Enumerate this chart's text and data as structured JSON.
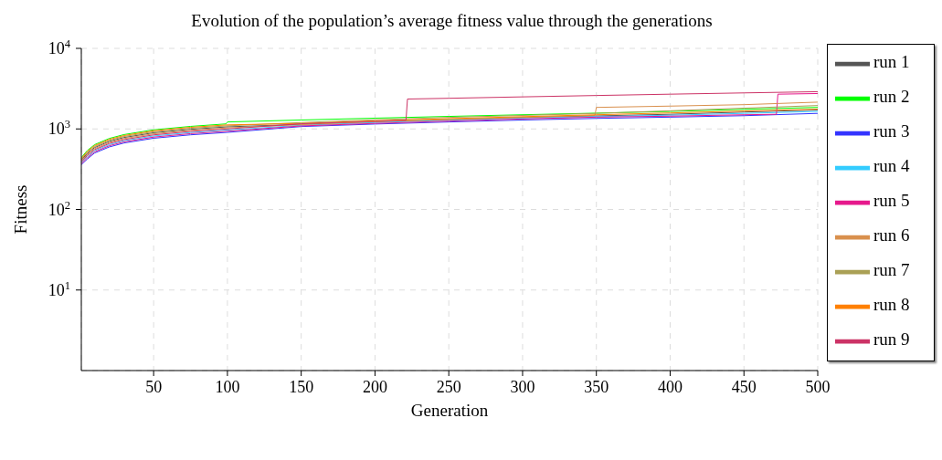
{
  "chart_data": {
    "type": "line",
    "title": "Evolution of the population’s average fitness value through the generations",
    "xlabel": "Generation",
    "ylabel": "Fitness",
    "xlim": [
      1,
      500
    ],
    "xticks": [
      50,
      100,
      150,
      200,
      250,
      300,
      350,
      400,
      450,
      500
    ],
    "ylim": [
      1,
      10000
    ],
    "yticks": [
      {
        "value": 10,
        "label": "10$^{1}$"
      },
      {
        "value": 100,
        "label": "10$^{2}$"
      },
      {
        "value": 1000,
        "label": "10$^{3}$"
      },
      {
        "value": 10000,
        "label": "10$^{4}$"
      }
    ],
    "log": "y",
    "grid": true,
    "legend": "top right",
    "marker": "none",
    "line_style": "solid",
    "series": [
      {
        "name": "run 1",
        "color": "#555555",
        "x": [
          1,
          5,
          10,
          20,
          30,
          50,
          75,
          100,
          150,
          200,
          250,
          300,
          350,
          400,
          450,
          500
        ],
        "values": [
          410,
          494,
          587,
          700,
          783,
          896,
          989,
          1061,
          1140,
          1230,
          1310,
          1390,
          1450,
          1520,
          1620,
          1720
        ]
      },
      {
        "name": "run 2",
        "color": "#00ff00",
        "x": [
          1,
          5,
          10,
          20,
          30,
          50,
          75,
          99,
          100,
          150,
          200,
          250,
          300,
          350,
          400,
          450,
          500
        ],
        "values": [
          440,
          538,
          638,
          762,
          851,
          974,
          1075,
          1154,
          1220,
          1290,
          1360,
          1430,
          1500,
          1570,
          1650,
          1750,
          1850
        ]
      },
      {
        "name": "run 3",
        "color": "#3333ff",
        "x": [
          1,
          5,
          10,
          20,
          30,
          50,
          75,
          100,
          150,
          200,
          250,
          300,
          350,
          400,
          450,
          500
        ],
        "values": [
          360,
          422,
          502,
          598,
          669,
          766,
          845,
          906,
          1070,
          1150,
          1220,
          1290,
          1350,
          1400,
          1460,
          1560
        ]
      },
      {
        "name": "run 4",
        "color": "#33ccff",
        "x": [
          1,
          5,
          10,
          20,
          30,
          50,
          75,
          100,
          150,
          200,
          250,
          300,
          350,
          400,
          450,
          500
        ],
        "values": [
          380,
          451,
          536,
          639,
          714,
          818,
          902,
          968,
          1110,
          1200,
          1280,
          1360,
          1420,
          1480,
          1560,
          1650
        ]
      },
      {
        "name": "run 5",
        "color": "#e6198c",
        "x": [
          1,
          5,
          10,
          20,
          30,
          50,
          75,
          100,
          150,
          200,
          250,
          300,
          350,
          400,
          450,
          472,
          473,
          500
        ],
        "values": [
          370,
          437,
          519,
          619,
          692,
          792,
          874,
          937,
          1090,
          1170,
          1250,
          1330,
          1400,
          1440,
          1500,
          1520,
          2700,
          2750
        ]
      },
      {
        "name": "run 6",
        "color": "#d9904d",
        "x": [
          1,
          5,
          10,
          20,
          30,
          50,
          75,
          100,
          150,
          200,
          250,
          300,
          349,
          350,
          400,
          450,
          500
        ],
        "values": [
          400,
          480,
          570,
          680,
          760,
          870,
          960,
          1030,
          1130,
          1230,
          1310,
          1390,
          1470,
          1850,
          1920,
          2000,
          2150
        ]
      },
      {
        "name": "run 7",
        "color": "#aaa055",
        "x": [
          1,
          5,
          10,
          20,
          30,
          50,
          75,
          100,
          150,
          200,
          250,
          300,
          350,
          400,
          450,
          500
        ],
        "values": [
          420,
          509,
          604,
          721,
          806,
          922,
          1018,
          1092,
          1200,
          1300,
          1390,
          1470,
          1560,
          1680,
          1810,
          1950
        ]
      },
      {
        "name": "run 8",
        "color": "#ff8000",
        "x": [
          1,
          5,
          10,
          20,
          30,
          50,
          75,
          100,
          150,
          200,
          250,
          300,
          350,
          400,
          450,
          500
        ],
        "values": [
          430,
          523,
          621,
          741,
          828,
          948,
          1046,
          1123,
          1170,
          1260,
          1340,
          1420,
          1500,
          1580,
          1670,
          1760
        ]
      },
      {
        "name": "run 9",
        "color": "#cc3366",
        "x": [
          1,
          5,
          10,
          20,
          30,
          50,
          75,
          100,
          150,
          200,
          221,
          222,
          250,
          300,
          350,
          400,
          450,
          500
        ],
        "values": [
          390,
          466,
          553,
          660,
          737,
          844,
          931,
          999,
          1160,
          1240,
          1280,
          2350,
          2400,
          2500,
          2600,
          2700,
          2800,
          2900
        ]
      }
    ]
  }
}
